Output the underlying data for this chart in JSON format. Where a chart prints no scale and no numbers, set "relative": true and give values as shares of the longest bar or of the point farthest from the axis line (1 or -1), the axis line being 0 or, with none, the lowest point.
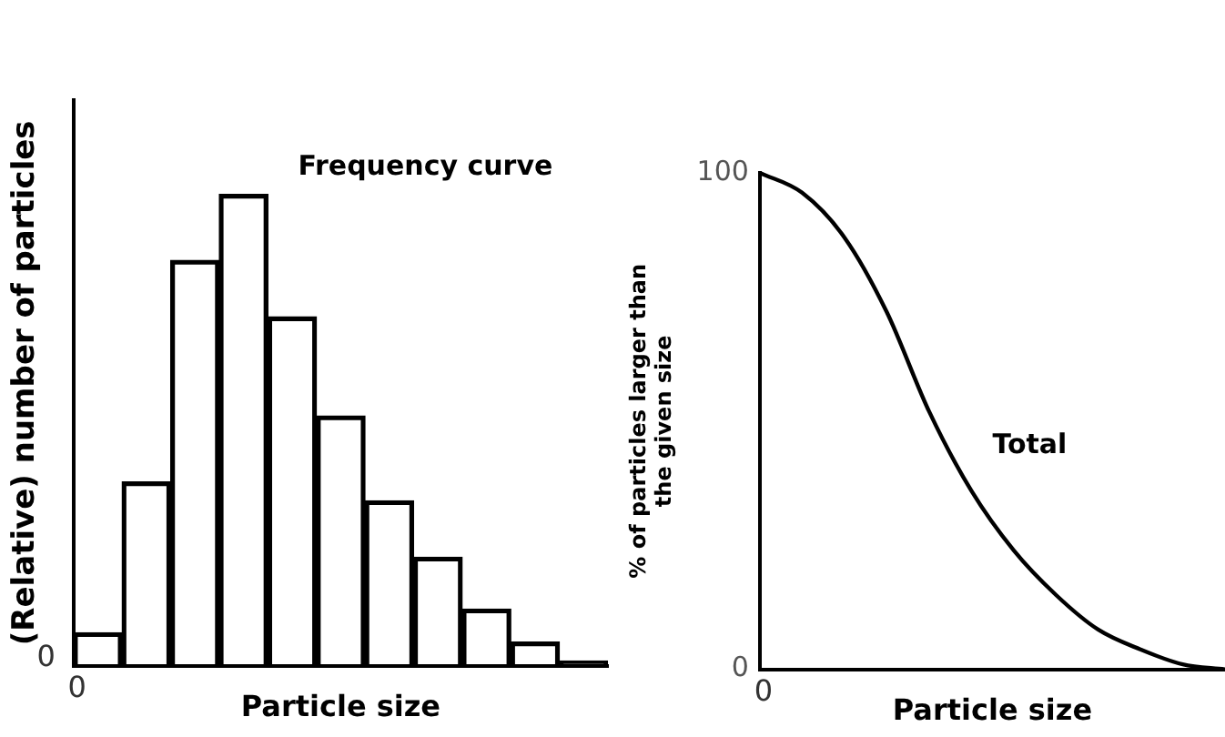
{
  "chart_data": [
    {
      "type": "bar",
      "relative": true,
      "ylabel": "(Relative) number of particles",
      "xlabel": "Particle size",
      "categories": [
        null,
        null,
        null,
        null,
        null,
        null,
        null,
        null,
        null,
        null,
        null
      ],
      "values": [
        0.07,
        0.39,
        0.86,
        1,
        0.74,
        0.53,
        0.35,
        0.23,
        0.12,
        0.05,
        0.01
      ],
      "color": "#000000",
      "grid": false,
      "legend": false,
      "tick_labels": false,
      "annotations": [
        "Frequency curve",
        "0",
        "0"
      ]
    },
    {
      "type": "line",
      "ylabel": "% of particles larger than\nthe given size",
      "xlabel": "Particle size",
      "categories": [
        null,
        null,
        null,
        null,
        null,
        null,
        null,
        null,
        null,
        null,
        null,
        null
      ],
      "values": [
        100,
        96,
        87,
        72,
        52,
        36,
        24,
        15,
        8,
        4,
        1,
        0
      ],
      "color": "#000000",
      "ylim": [
        0,
        100
      ],
      "yticks": [
        0,
        100
      ],
      "grid": false,
      "legend": false,
      "tick_labels": "y",
      "marker": "none",
      "line_style": "solid",
      "annotations": [
        "Total",
        "0"
      ]
    }
  ]
}
